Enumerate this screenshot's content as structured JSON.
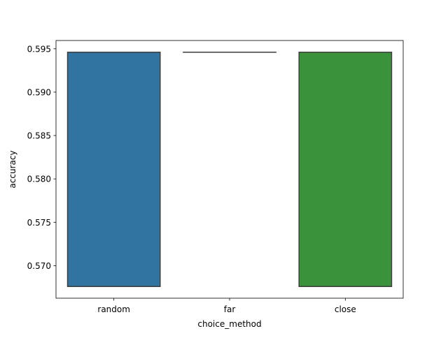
{
  "chart_data": {
    "type": "box",
    "title": "",
    "xlabel": "choice_method",
    "ylabel": "accuracy",
    "categories": [
      "random",
      "far",
      "close"
    ],
    "boxes": [
      {
        "category": "random",
        "q1": 0.5676,
        "q3": 0.5946,
        "median": 0.5676,
        "color": "#3274a1"
      },
      {
        "category": "far",
        "q1": 0.5946,
        "q3": 0.5946,
        "median": 0.5946,
        "color": "#e1812c"
      },
      {
        "category": "close",
        "q1": 0.5676,
        "q3": 0.5946,
        "median": 0.5676,
        "color": "#3a923a"
      }
    ],
    "ylim": [
      0.56625,
      0.59595
    ],
    "yticks": [
      0.57,
      0.575,
      0.58,
      0.585,
      0.59,
      0.595
    ],
    "ytick_labels": [
      "0.570",
      "0.575",
      "0.580",
      "0.585",
      "0.590",
      "0.595"
    ],
    "grid": false,
    "legend": "none"
  }
}
